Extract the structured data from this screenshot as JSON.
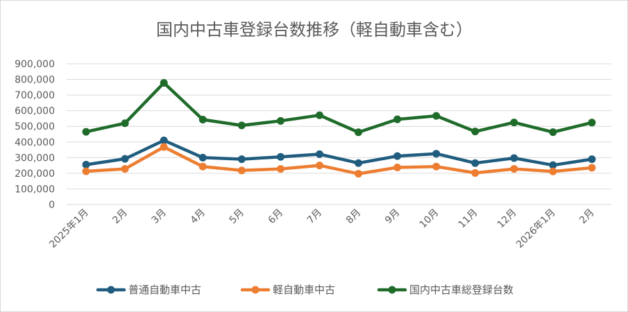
{
  "chart_data": {
    "type": "line",
    "title": "国内中古車登録台数推移（軽自動車含む）",
    "xlabel": "",
    "ylabel": "",
    "categories": [
      "2025年1月",
      "2月",
      "3月",
      "4月",
      "5月",
      "6月",
      "7月",
      "8月",
      "9月",
      "10月",
      "11月",
      "12月",
      "2026年1月",
      "2月"
    ],
    "ylim": [
      0,
      900000
    ],
    "yticks": [
      0,
      100000,
      200000,
      300000,
      400000,
      500000,
      600000,
      700000,
      800000,
      900000
    ],
    "ytick_labels": [
      "0",
      "100,000",
      "200,000",
      "300,000",
      "400,000",
      "500,000",
      "600,000",
      "700,000",
      "800,000",
      "900,000"
    ],
    "grid": true,
    "legend_position": "bottom",
    "series": [
      {
        "name": "普通自動車中古",
        "color": "#1f5c7e",
        "values": [
          255000,
          292000,
          410000,
          300000,
          290000,
          305000,
          322000,
          265000,
          310000,
          325000,
          265000,
          297000,
          252000,
          290000
        ]
      },
      {
        "name": "軽自動車中古",
        "color": "#ed7d31",
        "values": [
          213000,
          228000,
          368000,
          243000,
          218000,
          228000,
          250000,
          197000,
          237000,
          243000,
          202000,
          228000,
          212000,
          235000
        ]
      },
      {
        "name": "国内中古車総登録台数",
        "color": "#1e6b2a",
        "values": [
          465000,
          520000,
          778000,
          543000,
          506000,
          535000,
          571000,
          462000,
          545000,
          567000,
          467000,
          525000,
          463000,
          524000
        ]
      }
    ]
  }
}
